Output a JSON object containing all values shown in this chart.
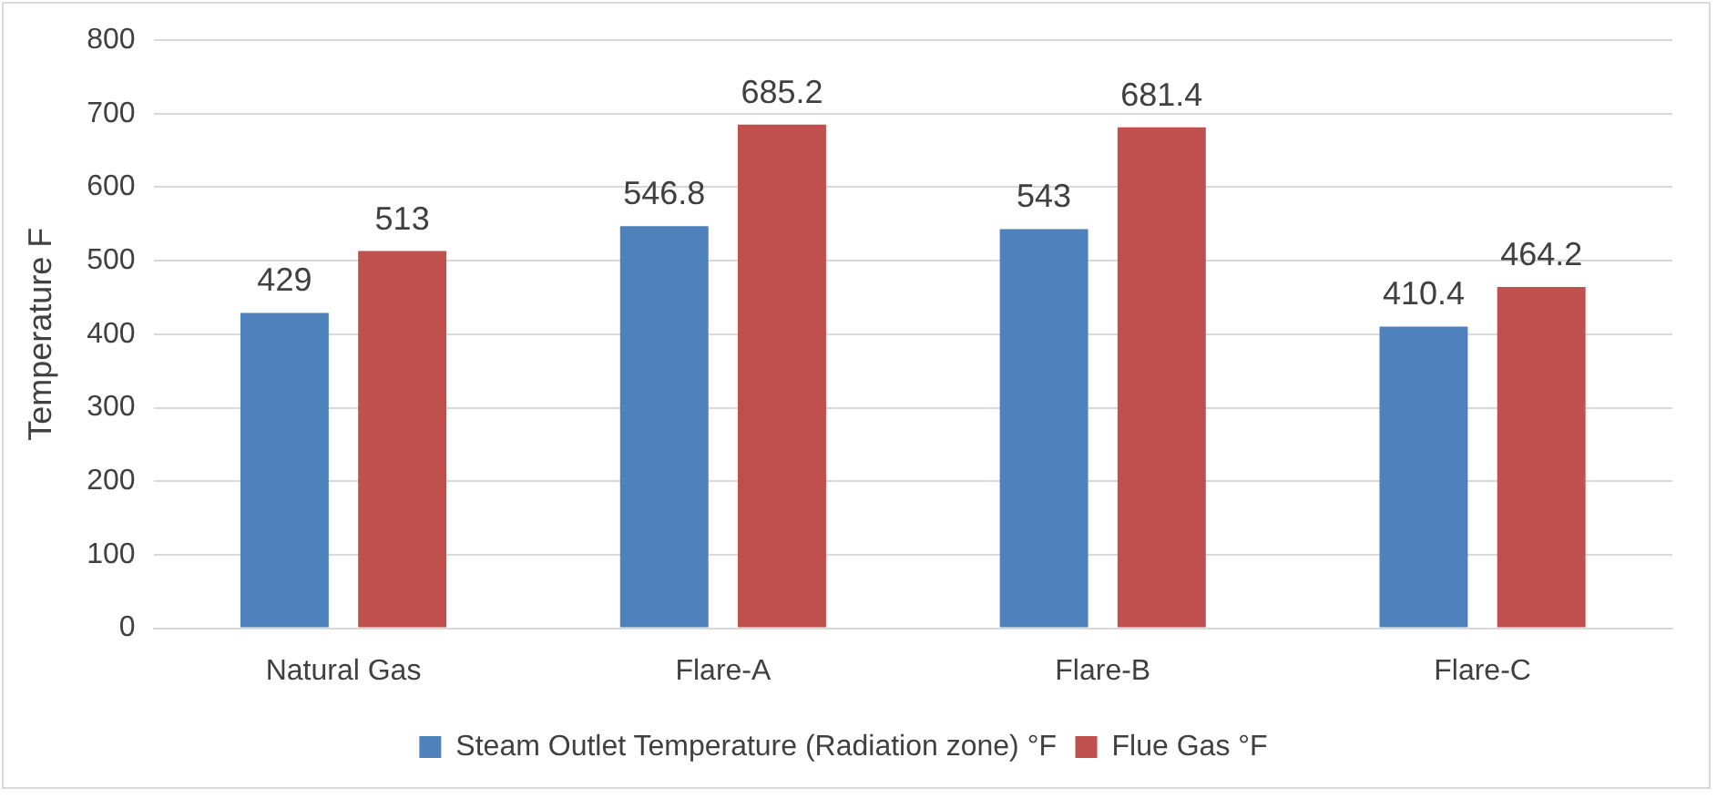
{
  "chart_data": {
    "type": "bar",
    "ylabel": "Temperature F",
    "categories": [
      "Natural Gas",
      "Flare-A",
      "Flare-B",
      "Flare-C"
    ],
    "series": [
      {
        "name": "Steam Outlet Temperature (Radiation zone) °F",
        "color": "#4f81bd",
        "values": [
          429,
          546.8,
          543,
          410.4
        ]
      },
      {
        "name": "Flue Gas °F",
        "color": "#c0504d",
        "values": [
          513,
          685.2,
          681.4,
          464.2
        ]
      }
    ],
    "ylim": [
      0,
      800
    ],
    "yticks": [
      0,
      100,
      200,
      300,
      400,
      500,
      600,
      700,
      800
    ],
    "grid": "y",
    "legend": "bottom",
    "data_labels": true
  }
}
